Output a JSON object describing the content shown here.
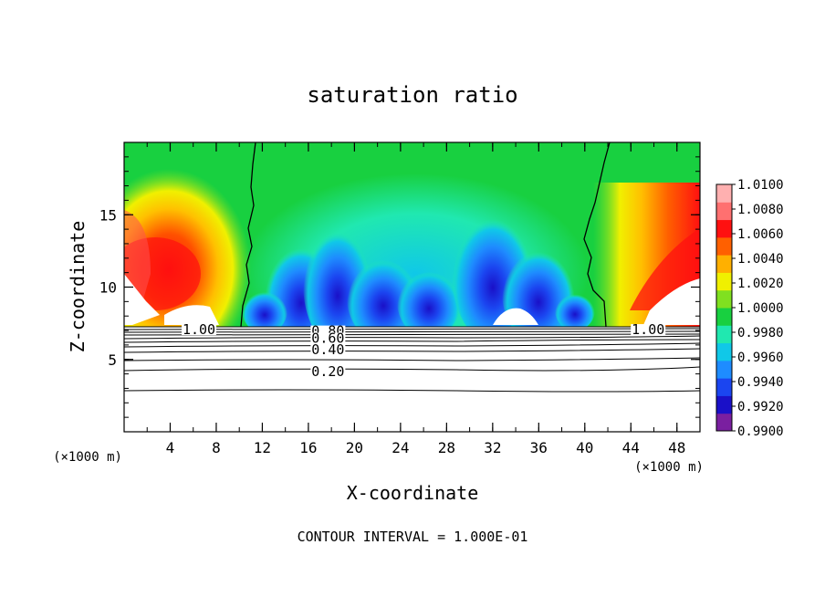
{
  "chart_data": {
    "type": "heatmap",
    "title": "saturation ratio",
    "xlabel": "X-coordinate",
    "ylabel": "Z-coordinate",
    "x_unit": "(×1000 m)",
    "x_unit_right": "(×1000 m)",
    "footer": "CONTOUR INTERVAL = 1.000E-01",
    "xlim": [
      0,
      50
    ],
    "ylim": [
      0,
      20
    ],
    "xticks": [
      4,
      8,
      12,
      16,
      20,
      24,
      28,
      32,
      36,
      40,
      44,
      48
    ],
    "yticks": [
      5,
      10,
      15
    ],
    "colorbar": {
      "labels": [
        "1.0100",
        "1.0080",
        "1.0060",
        "1.0040",
        "1.0020",
        "1.0000",
        "0.9980",
        "0.9960",
        "0.9940",
        "0.9920",
        "0.9900"
      ],
      "min": 0.99,
      "max": 1.01,
      "colors": [
        "#7a1fa0",
        "#1a10c8",
        "#1b45f0",
        "#1e8cff",
        "#10c8e8",
        "#20e8b0",
        "#18d040",
        "#80e020",
        "#f0f000",
        "#ffb000",
        "#ff6000",
        "#ff1010",
        "#ff7070",
        "#ffb0b0"
      ]
    },
    "contour_labels": [
      {
        "text": "1.00",
        "x": 6.5,
        "z": 7.0
      },
      {
        "text": "1.00",
        "x": 45.5,
        "z": 7.0
      },
      {
        "text": "0.80",
        "x": 17.7,
        "z": 6.9
      },
      {
        "text": "0.60",
        "x": 17.7,
        "z": 6.4
      },
      {
        "text": "0.40",
        "x": 17.7,
        "z": 5.6
      },
      {
        "text": "0.20",
        "x": 17.7,
        "z": 4.1
      }
    ]
  }
}
